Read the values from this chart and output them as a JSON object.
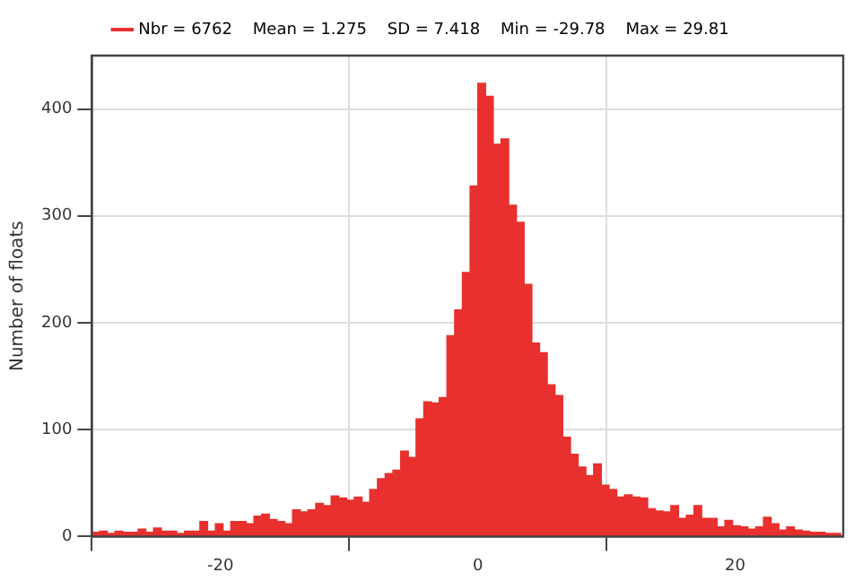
{
  "chart_data": {
    "type": "histogram",
    "ylabel": "Number of floats",
    "bins": [
      -30,
      -29.4,
      -28.8,
      -28.2,
      -27.6,
      -27,
      -26.4,
      -25.8,
      -25.2,
      -24.6,
      -24,
      -23.4,
      -22.8,
      -22.2,
      -21.6,
      -21,
      -20.4,
      -19.8,
      -19.2,
      -18.6,
      -18,
      -17.4,
      -16.8,
      -16.2,
      -15.6,
      -15,
      -14.4,
      -13.8,
      -13.2,
      -12.6,
      -12,
      -11.4,
      -10.8,
      -10.2,
      -9.6,
      -9,
      -8.4,
      -7.8,
      -7.2,
      -6.6,
      -6,
      -5.4,
      -4.8,
      -4.2,
      -3.6,
      -3,
      -2.4,
      -1.8,
      -1.2,
      -0.6,
      0,
      0.6,
      1.2,
      1.8,
      2.4,
      3,
      3.6,
      4.2,
      4.8,
      5.4,
      6,
      6.6,
      7.2,
      7.8,
      8.4,
      9,
      9.6,
      10.2,
      10.8,
      11.4,
      12,
      12.6,
      13.2,
      13.8,
      14.4,
      15,
      15.6,
      16.2,
      16.8,
      17.4,
      18,
      18.6,
      19.2,
      19.8,
      20.4,
      21,
      21.6,
      22.2,
      22.8,
      23.4,
      24,
      24.6,
      25.2,
      25.8,
      26.4,
      27,
      27.6,
      28.2
    ],
    "series": [
      {
        "name": "Nbr = 6762    Mean = 1.275    SD = 7.418    Min = -29.78    Max = 29.81",
        "color": "#e8302e",
        "values": [
          4,
          5,
          3,
          5,
          4,
          4,
          7,
          4,
          8,
          5,
          5,
          3,
          5,
          5,
          14,
          5,
          12,
          5,
          14,
          14,
          12,
          19,
          21,
          16,
          14,
          12,
          25,
          23,
          25,
          31,
          29,
          38,
          36,
          34,
          37,
          32,
          44,
          54,
          59,
          62,
          80,
          74,
          110,
          126,
          125,
          130,
          188,
          212,
          247,
          328,
          424,
          412,
          367,
          372,
          310,
          294,
          236,
          181,
          172,
          142,
          132,
          93,
          77,
          65,
          57,
          68,
          48,
          44,
          37,
          39,
          37,
          36,
          26,
          24,
          23,
          29,
          17,
          20,
          29,
          17,
          17,
          9,
          15,
          10,
          9,
          7,
          9,
          18,
          12,
          6,
          9,
          6,
          5,
          4,
          4,
          3,
          3
        ]
      }
    ],
    "xlim": [
      -30,
      28.4
    ],
    "xticks": [
      -20,
      0,
      20
    ],
    "ylim": [
      0,
      450
    ],
    "yticks": [
      0,
      100,
      200,
      300,
      400
    ],
    "grid": true,
    "legend": "top"
  }
}
